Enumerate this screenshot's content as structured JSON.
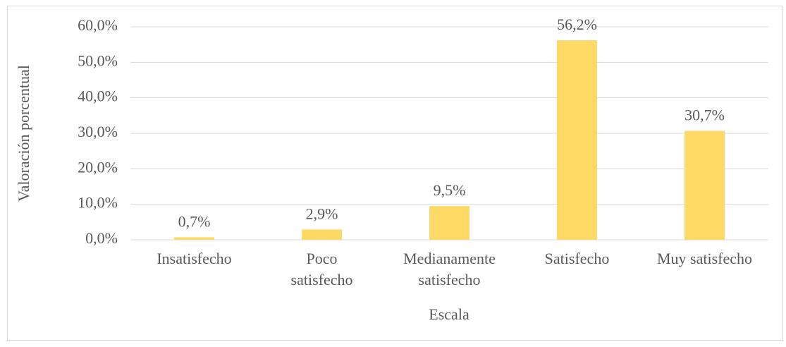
{
  "chart_data": {
    "type": "bar",
    "x_label": "Escala",
    "y_label": "Valoración porcentual",
    "categories": [
      "Insatisfecho",
      "Poco\nsatisfecho",
      "Medianamente\nsatisfecho",
      "Satisfecho",
      "Muy satisfecho"
    ],
    "values": [
      0.7,
      2.9,
      9.5,
      56.2,
      30.7
    ],
    "value_labels": [
      "0,7%",
      "2,9%",
      "9,5%",
      "56,2%",
      "30,7%"
    ],
    "color": "#ffd966",
    "ylim": [
      0,
      60
    ],
    "yticks": [
      {
        "value": 0,
        "label": "0,0%"
      },
      {
        "value": 10,
        "label": "10,0%"
      },
      {
        "value": 20,
        "label": "20,0%"
      },
      {
        "value": 30,
        "label": "30,0%"
      },
      {
        "value": 40,
        "label": "40,0%"
      },
      {
        "value": 50,
        "label": "50,0%"
      },
      {
        "value": 60,
        "label": "60,0%"
      }
    ],
    "grid": true
  }
}
